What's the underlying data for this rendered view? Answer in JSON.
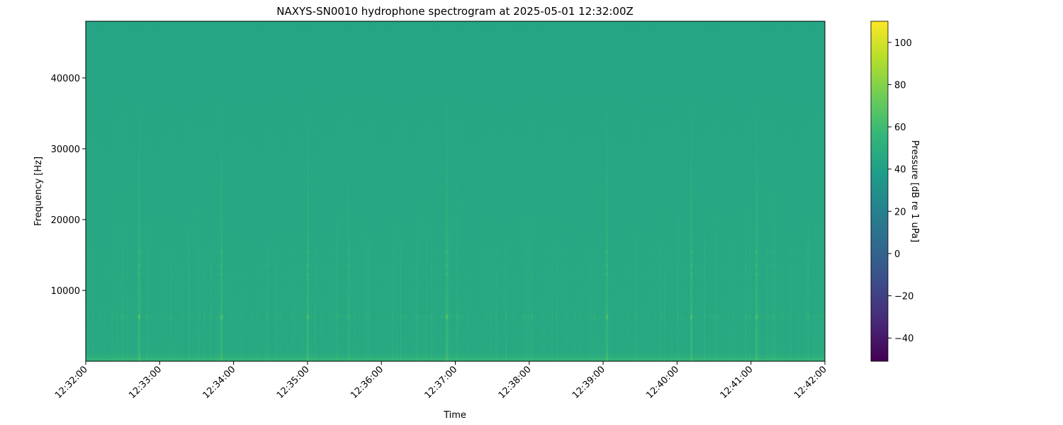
{
  "chart_data": {
    "type": "heatmap",
    "title": "NAXYS-SN0010 hydrophone spectrogram at 2025-05-01 12:32:00Z",
    "xlabel": "Time",
    "ylabel": "Frequency [Hz]",
    "x_ticks": [
      "12:32:00",
      "12:33:00",
      "12:34:00",
      "12:35:00",
      "12:36:00",
      "12:37:00",
      "12:38:00",
      "12:39:00",
      "12:40:00",
      "12:41:00",
      "12:42:00"
    ],
    "y_ticks": [
      10000,
      20000,
      30000,
      40000
    ],
    "y_tick_labels": [
      "10000",
      "20000",
      "30000",
      "40000"
    ],
    "xlim": [
      "12:32:00",
      "12:42:00"
    ],
    "ylim": [
      0,
      48000
    ],
    "colorbar": {
      "label": "Pressure [dB re 1 uPa]",
      "range": [
        -51,
        110
      ],
      "ticks": [
        -40,
        -20,
        0,
        20,
        40,
        60,
        80,
        100
      ],
      "tick_labels": [
        "−40",
        "−20",
        "0",
        "20",
        "40",
        "60",
        "80",
        "100"
      ],
      "colormap": "viridis"
    },
    "background_level_db": 45,
    "low_frequency_level_db": 55,
    "tonal_bands_hz": [
      6300,
      12300,
      13600,
      15500
    ],
    "strong_broadband_events": [
      "12:32:43",
      "12:33:50",
      "12:35:00",
      "12:36:53",
      "12:39:03",
      "12:40:11",
      "12:41:04"
    ],
    "grid": false
  }
}
